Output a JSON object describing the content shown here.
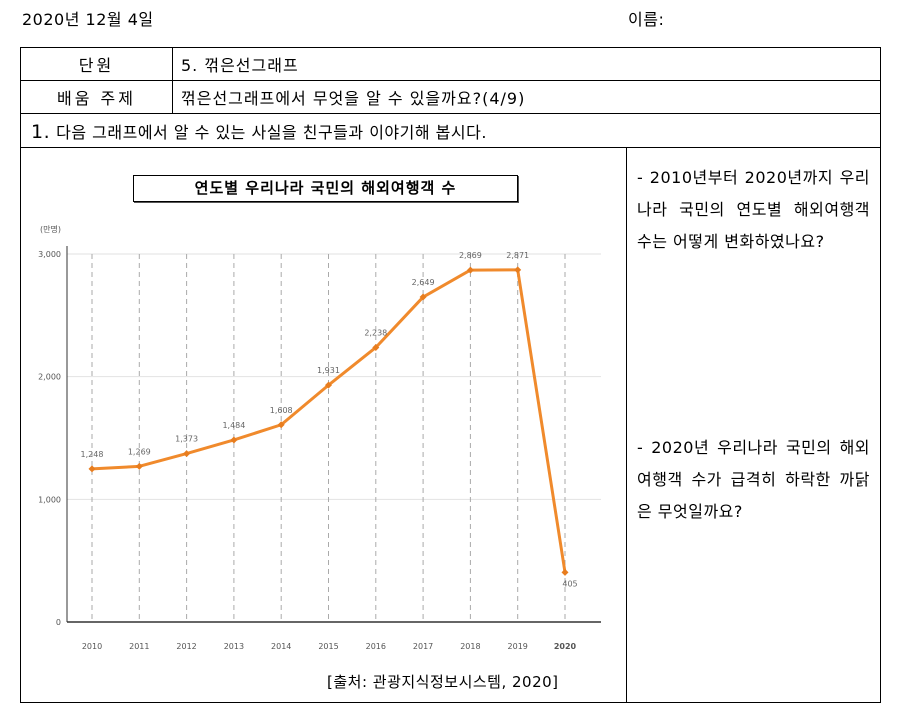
{
  "header": {
    "date": "2020년 12월 4일",
    "name_label": "이름:"
  },
  "rows": {
    "unit_label": "단원",
    "unit_value": "5. 꺾은선그래프",
    "topic_label": "배움 주제",
    "topic_value": "꺾은선그래프에서 무엇을 알 수 있을까요?(4/9)"
  },
  "question": {
    "number": "1.",
    "text": "다음 그래프에서 알 수 있는 사실을 친구들과 이야기해 봅시다."
  },
  "side": {
    "q1": "- 2010년부터 2020년까지 우리나라 국민의 연도별 해외여행객 수는 어떻게 변화하였나요?",
    "q2": "- 2020년 우리나라 국민의 해외여행객 수가 급격히 하락한 까닭은 무엇일까요?"
  },
  "chart_data": {
    "type": "line",
    "title": "연도별 우리나라 국민의 해외여행객 수",
    "unit_label": "(만명)",
    "categories": [
      "2010",
      "2011",
      "2012",
      "2013",
      "2014",
      "2015",
      "2016",
      "2017",
      "2018",
      "2019",
      "2020"
    ],
    "values": [
      1248,
      1269,
      1373,
      1484,
      1608,
      1931,
      2238,
      2649,
      2869,
      2871,
      405
    ],
    "value_labels": [
      "1,248",
      "1,269",
      "1,373",
      "1,484",
      "1,608",
      "1,931",
      "2,238",
      "2,649",
      "2,869",
      "2,871",
      "405"
    ],
    "y_ticks": [
      0,
      1000,
      2000,
      3000
    ],
    "y_tick_labels": [
      "0",
      "1,000",
      "2,000",
      "3,000"
    ],
    "ylim": [
      0,
      3000
    ],
    "source": "[출처: 관광지식정보시스템, 2020]",
    "colors": {
      "line": "#f08a2c",
      "point": "#e87d1e",
      "grid_v": "#aaaaaa",
      "grid_h": "#e2e2e2",
      "axis": "#333333"
    }
  }
}
